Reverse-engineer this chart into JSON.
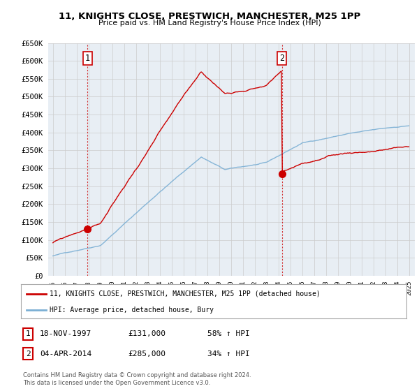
{
  "title": "11, KNIGHTS CLOSE, PRESTWICH, MANCHESTER, M25 1PP",
  "subtitle": "Price paid vs. HM Land Registry's House Price Index (HPI)",
  "legend_line1": "11, KNIGHTS CLOSE, PRESTWICH, MANCHESTER, M25 1PP (detached house)",
  "legend_line2": "HPI: Average price, detached house, Bury",
  "red_color": "#CC0000",
  "blue_color": "#7BAFD4",
  "dot_color": "#CC0000",
  "sale1_x": 1997.9,
  "sale1_y": 131000,
  "sale2_x": 2014.3,
  "sale2_y": 285000,
  "table_rows": [
    {
      "num": "1",
      "date": "18-NOV-1997",
      "price": "£131,000",
      "change": "58% ↑ HPI"
    },
    {
      "num": "2",
      "date": "04-APR-2014",
      "price": "£285,000",
      "change": "34% ↑ HPI"
    }
  ],
  "footer": "Contains HM Land Registry data © Crown copyright and database right 2024.\nThis data is licensed under the Open Government Licence v3.0.",
  "ylim": [
    0,
    650000
  ],
  "yticks": [
    0,
    50000,
    100000,
    150000,
    200000,
    250000,
    300000,
    350000,
    400000,
    450000,
    500000,
    550000,
    600000,
    650000
  ],
  "xticks": [
    1995,
    1996,
    1997,
    1998,
    1999,
    2000,
    2001,
    2002,
    2003,
    2004,
    2005,
    2006,
    2007,
    2008,
    2009,
    2010,
    2011,
    2012,
    2013,
    2014,
    2015,
    2016,
    2017,
    2018,
    2019,
    2020,
    2021,
    2022,
    2023,
    2024,
    2025
  ],
  "bg_color": "#FFFFFF",
  "chart_bg_color": "#E8EEF4",
  "grid_color": "#CCCCCC",
  "dashed_vline_color": "#CC0000",
  "annotation_box_color": "#CC0000"
}
